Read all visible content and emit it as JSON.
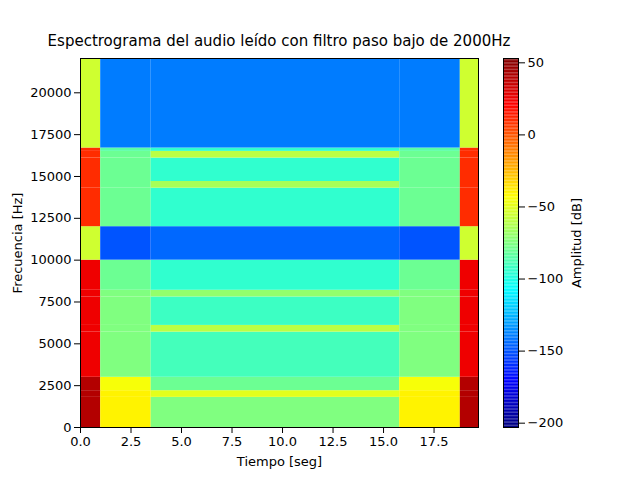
{
  "chart_data": {
    "type": "heatmap",
    "title": "Espectrograma del audio leído con filtro paso bajo de 2000Hz",
    "x_label": "Tiempo [seg]",
    "y_label": "Frecuencia [Hz]",
    "x_edges": [
      0,
      1.0,
      3.5,
      15.8,
      18.8,
      19.7
    ],
    "y_edges": [
      0,
      1800,
      2200,
      3000,
      5700,
      6100,
      7800,
      8200,
      10000,
      12000,
      14300,
      14700,
      16100,
      16500,
      16700,
      22050
    ],
    "cells": [
      [
        40,
        -40,
        -75,
        -40,
        40
      ],
      [
        40,
        -40,
        -50,
        -40,
        40
      ],
      [
        40,
        -45,
        -80,
        -45,
        40
      ],
      [
        25,
        -75,
        -90,
        -75,
        25
      ],
      [
        25,
        -75,
        -60,
        -75,
        25
      ],
      [
        25,
        -75,
        -92,
        -75,
        25
      ],
      [
        25,
        -75,
        -70,
        -75,
        25
      ],
      [
        25,
        -80,
        -95,
        -80,
        25
      ],
      [
        -55,
        -150,
        -145,
        -150,
        -55
      ],
      [
        10,
        -80,
        -95,
        -80,
        10
      ],
      [
        10,
        -80,
        -65,
        -80,
        10
      ],
      [
        10,
        -80,
        -95,
        -80,
        10
      ],
      [
        10,
        -80,
        -60,
        -80,
        10
      ],
      [
        10,
        -85,
        -95,
        -85,
        10
      ],
      [
        -55,
        -140,
        -140,
        -140,
        -55
      ]
    ],
    "xlim": [
      0,
      19.7
    ],
    "ylim": [
      0,
      22050
    ],
    "xticks": [
      {
        "value": 0,
        "label": "0.0"
      },
      {
        "value": 2.5,
        "label": "2.5"
      },
      {
        "value": 5,
        "label": "5.0"
      },
      {
        "value": 7.5,
        "label": "7.5"
      },
      {
        "value": 10,
        "label": "10.0"
      },
      {
        "value": 12.5,
        "label": "12.5"
      },
      {
        "value": 15,
        "label": "15.0"
      },
      {
        "value": 17.5,
        "label": "17.5"
      }
    ],
    "yticks": [
      0,
      2500,
      5000,
      7500,
      10000,
      12500,
      15000,
      17500,
      20000
    ],
    "colorbar": {
      "label": "Amplitud [dB]",
      "range": [
        -203,
        53
      ],
      "ticks": [
        {
          "value": -200,
          "label": "−200"
        },
        {
          "value": -150,
          "label": "−150"
        },
        {
          "value": -100,
          "label": "−100"
        },
        {
          "value": -50,
          "label": "−50"
        },
        0,
        50
      ]
    }
  }
}
